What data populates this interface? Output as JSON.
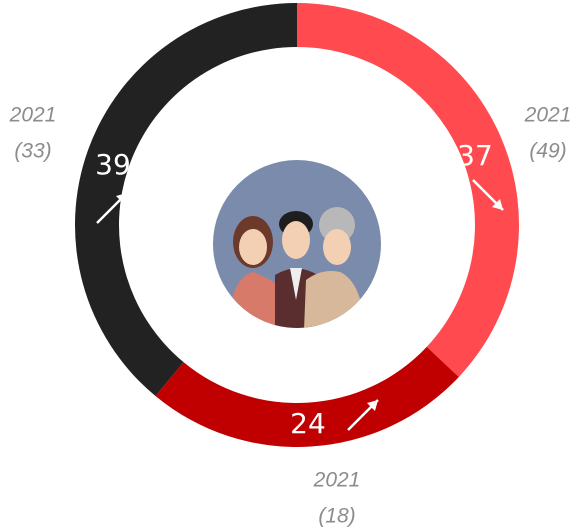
{
  "chart_data": {
    "type": "donut",
    "values": [
      37,
      24,
      39
    ],
    "colors": [
      "#ff4b4f",
      "#c00000",
      "#222222"
    ],
    "previous_year": [
      "2021",
      "2021",
      "2021"
    ],
    "previous_values": [
      49,
      18,
      33
    ],
    "previous_labels": [
      "(49)",
      "(18)",
      "(33)"
    ]
  }
}
